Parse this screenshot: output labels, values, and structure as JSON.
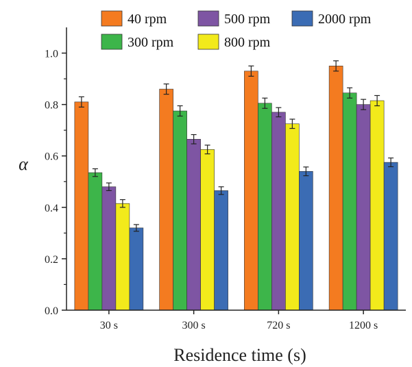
{
  "chart_data": {
    "type": "bar",
    "xlabel": "Residence time (s)",
    "ylabel": "α",
    "categories": [
      "30 s",
      "300 s",
      "720 s",
      "1200 s"
    ],
    "ylim": [
      0,
      1.1
    ],
    "yticks": [
      "0.0",
      "0.2",
      "0.4",
      "0.6",
      "0.8",
      "1.0"
    ],
    "legend_position": "top",
    "series": [
      {
        "name": "40 rpm",
        "color": "#F47B20",
        "values": [
          0.81,
          0.86,
          0.93,
          0.95
        ],
        "errors": [
          0.02,
          0.02,
          0.02,
          0.02
        ]
      },
      {
        "name": "300 rpm",
        "color": "#3DB54A",
        "values": [
          0.535,
          0.775,
          0.805,
          0.845
        ],
        "errors": [
          0.015,
          0.02,
          0.02,
          0.02
        ]
      },
      {
        "name": "500 rpm",
        "color": "#7E55A3",
        "values": [
          0.48,
          0.665,
          0.77,
          0.8
        ],
        "errors": [
          0.015,
          0.018,
          0.018,
          0.02
        ]
      },
      {
        "name": "800 rpm",
        "color": "#F2EA1B",
        "values": [
          0.415,
          0.625,
          0.725,
          0.815
        ],
        "errors": [
          0.015,
          0.017,
          0.018,
          0.02
        ]
      },
      {
        "name": "2000 rpm",
        "color": "#3B6CB4",
        "values": [
          0.32,
          0.465,
          0.54,
          0.575
        ],
        "errors": [
          0.013,
          0.015,
          0.017,
          0.017
        ]
      }
    ]
  }
}
